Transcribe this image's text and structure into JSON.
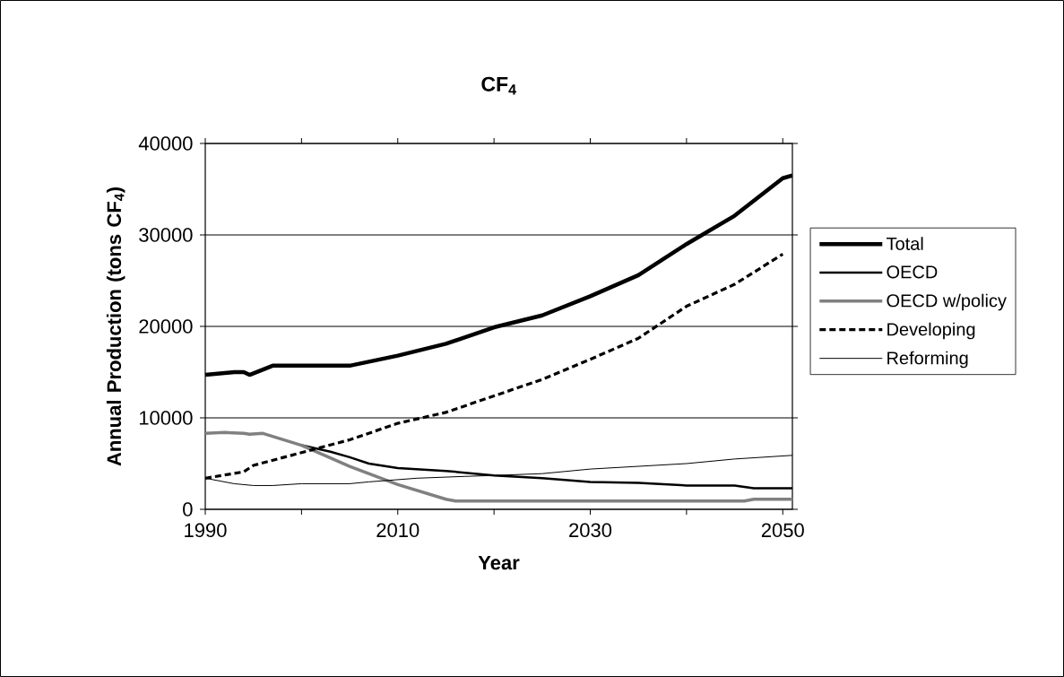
{
  "chart_data": {
    "type": "line",
    "title": "CF$_{4}$",
    "xlabel": "Year",
    "ylabel": "Annual Production (tons CF$_{4}$)",
    "xlim": [
      1990,
      2051
    ],
    "ylim": [
      0,
      40000
    ],
    "xticks": [
      1990,
      {
        "value": 2000,
        "label": null
      },
      2010,
      {
        "value": 2020,
        "label": null
      },
      2030,
      {
        "value": 2040,
        "label": null
      },
      2050
    ],
    "yticks": [
      0,
      10000,
      20000,
      30000,
      40000
    ],
    "grid": "y",
    "legend": "right",
    "series": [
      {
        "name": "Total",
        "color": "#000000",
        "line_style": "solid",
        "x": [
          1990,
          1993,
          1994,
          1994.6,
          1997,
          2005,
          2010,
          2015,
          2020,
          2025,
          2030,
          2035,
          2040,
          2045,
          2050,
          2051
        ],
        "values": [
          14700,
          15000,
          15000,
          14700,
          15700,
          15700,
          16800,
          18100,
          19900,
          21200,
          23300,
          25600,
          29000,
          32100,
          36200,
          36500
        ]
      },
      {
        "name": "OECD",
        "color": "#000000",
        "line_style": "solid",
        "x": [
          2000,
          2003,
          2005,
          2007,
          2010,
          2015,
          2020,
          2025,
          2030,
          2035,
          2040,
          2045,
          2047,
          2051
        ],
        "values": [
          7000,
          6300,
          5700,
          5000,
          4500,
          4200,
          3700,
          3400,
          3000,
          2900,
          2600,
          2600,
          2300,
          2300
        ]
      },
      {
        "name": "OECD w/policy",
        "color": "#808080",
        "line_style": "solid",
        "x": [
          1990,
          1992,
          1994,
          1994.6,
          1996,
          2000,
          2005,
          2010,
          2015,
          2016,
          2046,
          2047,
          2051
        ],
        "values": [
          8300,
          8400,
          8300,
          8200,
          8300,
          7000,
          4700,
          2700,
          1100,
          900,
          900,
          1100,
          1100
        ]
      },
      {
        "name": "Developing",
        "color": "#000000",
        "line_style": "dashed",
        "x": [
          1990,
          1994,
          1995,
          2000,
          2005,
          2010,
          2015,
          2020,
          2025,
          2030,
          2035,
          2040,
          2045,
          2050
        ],
        "values": [
          3400,
          4100,
          4800,
          6200,
          7600,
          9400,
          10600,
          12400,
          14200,
          16400,
          18700,
          22200,
          24600,
          27900
        ]
      },
      {
        "name": "Reforming",
        "color": "#000000",
        "line_style": "solid",
        "x": [
          1990,
          1993,
          1995,
          1997,
          2000,
          2005,
          2007,
          2012,
          2017,
          2020,
          2025,
          2030,
          2035,
          2040,
          2045,
          2051
        ],
        "values": [
          3400,
          2800,
          2600,
          2600,
          2800,
          2800,
          3000,
          3400,
          3600,
          3700,
          3900,
          4400,
          4700,
          5000,
          5500,
          5900
        ]
      }
    ]
  }
}
